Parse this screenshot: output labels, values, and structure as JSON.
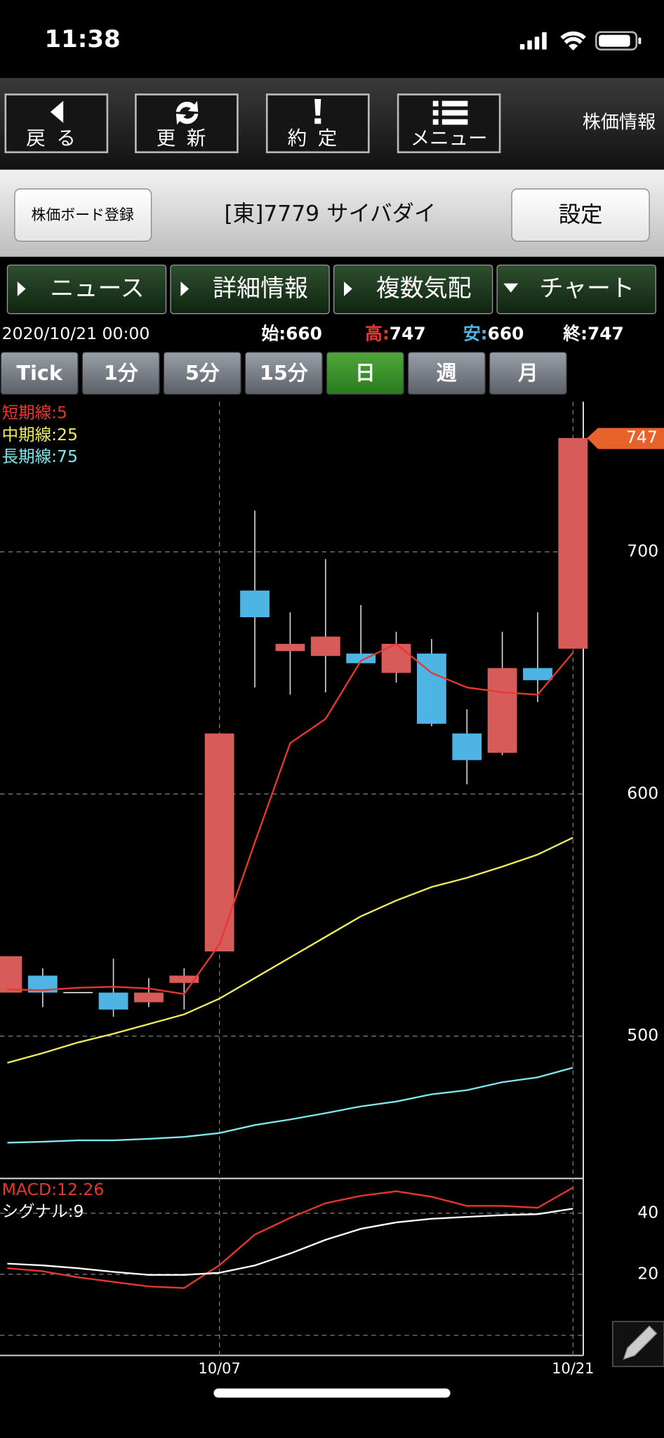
{
  "status_bar": {
    "time": "11:38"
  },
  "toolbar": {
    "buttons": [
      "戻る",
      "更新",
      "約定",
      "メニュー"
    ],
    "title": "株価情報"
  },
  "header": {
    "register_button": "株価ボード登録",
    "stock": "[東]7779 サイバダイ",
    "settings_button": "設定"
  },
  "tabs": [
    "ニュース",
    "詳細情報",
    "複数気配",
    "チャート"
  ],
  "quote": {
    "datetime": "2020/10/21 00:00",
    "open_label": "始:",
    "open": 660,
    "high_label": "高:",
    "high": 747,
    "low_label": "安:",
    "low": 660,
    "close_label": "終:",
    "close": 747
  },
  "periods": [
    "Tick",
    "1分",
    "5分",
    "15分",
    "日",
    "週",
    "月"
  ],
  "selected_period": 4,
  "chart_data": [
    {
      "type": "candlestick",
      "categories": [
        null,
        null,
        null,
        null,
        null,
        null,
        "10/07",
        null,
        null,
        null,
        null,
        null,
        null,
        null,
        null,
        null,
        "10/21"
      ],
      "open": [
        518,
        525,
        518,
        518,
        514,
        522,
        535,
        684,
        659,
        657,
        658,
        650,
        658,
        625,
        617,
        652,
        660
      ],
      "high": [
        533,
        528,
        518,
        532,
        524,
        528,
        625,
        717,
        675,
        697,
        678,
        667,
        664,
        635,
        667,
        675,
        747
      ],
      "low": [
        518,
        512,
        518,
        508,
        512,
        511,
        535,
        644,
        641,
        642,
        654,
        646,
        628,
        604,
        616,
        638,
        660
      ],
      "close": [
        533,
        518,
        518,
        511,
        518,
        525,
        625,
        673,
        662,
        665,
        654,
        662,
        629,
        614,
        652,
        647,
        747
      ],
      "up_color": "#d75b58",
      "down_color": "#4db4e3",
      "series": [
        {
          "name": "短期線:5",
          "color": "#e8372f",
          "values": [
            519.3,
            519,
            520,
            520.4,
            519.7,
            517.4,
            538,
            580,
            621,
            631,
            655,
            662,
            650,
            644,
            642,
            641,
            658.4
          ]
        },
        {
          "name": "中期線:25",
          "color": "#f0ec5a",
          "values": [
            489,
            493,
            497.4,
            501,
            505,
            509,
            515.5,
            524,
            532.5,
            541,
            549.5,
            556,
            561.6,
            565.4,
            570,
            575,
            582
          ]
        },
        {
          "name": "長期線:75",
          "color": "#7fe7ee",
          "values": [
            456,
            456.4,
            457,
            457,
            457.6,
            458.4,
            460,
            463.3,
            465.6,
            468.2,
            471,
            473,
            476,
            477.7,
            481,
            483,
            487
          ]
        }
      ],
      "ylim": [
        442,
        762
      ],
      "yticks": [
        500,
        600,
        700
      ],
      "grid": true
    },
    {
      "type": "line",
      "series": [
        {
          "name": "MACD:12.26",
          "color": "#e8372f",
          "values": [
            22,
            21,
            19,
            17.5,
            16,
            15.5,
            23,
            33,
            38.5,
            43.3,
            45.7,
            47.2,
            45.4,
            42.4,
            42.4,
            41.8,
            48.4
          ]
        },
        {
          "name": "シグナル:9",
          "color": "#ffffff",
          "values": [
            23.5,
            22.9,
            22,
            20.8,
            19.8,
            19.8,
            20.5,
            22.9,
            26.8,
            31.3,
            34.9,
            37,
            38.2,
            38.8,
            39.4,
            39.7,
            41.5
          ]
        }
      ],
      "ylim": [
        -6.6,
        51.4
      ],
      "yticks": [
        0,
        20,
        40
      ],
      "grid": true
    }
  ]
}
